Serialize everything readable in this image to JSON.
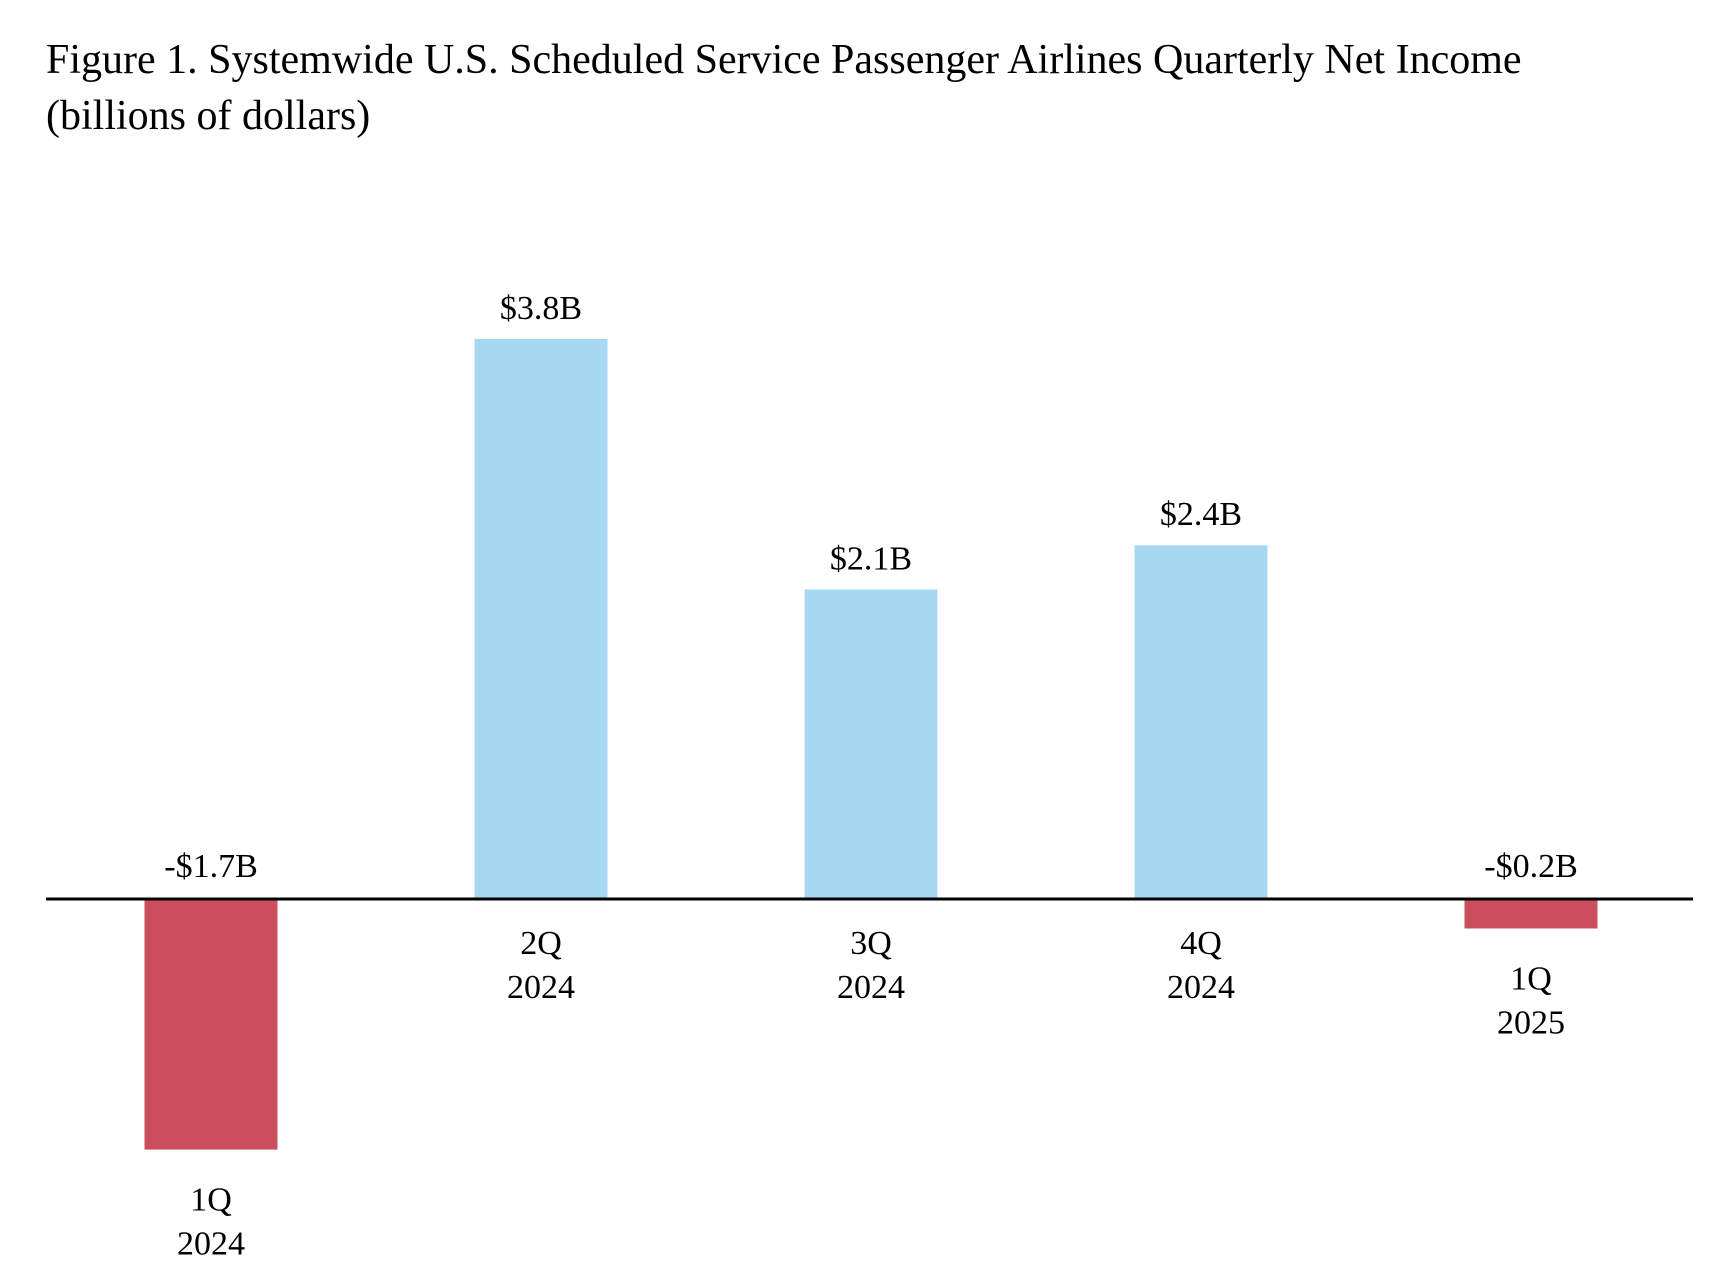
{
  "chart_data": {
    "type": "bar",
    "title_line1": "Figure 1. Systemwide U.S. Scheduled Service Passenger Airlines Quarterly Net Income",
    "title_line2": "(billions of dollars)",
    "categories": [
      {
        "quarter": "1Q",
        "year": "2024"
      },
      {
        "quarter": "2Q",
        "year": "2024"
      },
      {
        "quarter": "3Q",
        "year": "2024"
      },
      {
        "quarter": "4Q",
        "year": "2024"
      },
      {
        "quarter": "1Q",
        "year": "2025"
      }
    ],
    "values": [
      -1.7,
      3.8,
      2.1,
      2.4,
      -0.2
    ],
    "data_labels": [
      "-$1.7B",
      "$3.8B",
      "$2.1B",
      "$2.4B",
      "-$0.2B"
    ],
    "ylabel": "",
    "xlabel": "",
    "ylim": [
      -1.7,
      3.8
    ],
    "grid": false,
    "colors": {
      "positive": "#A6D8F2",
      "negative": "#CB4E5C",
      "axis": "#000000"
    }
  }
}
